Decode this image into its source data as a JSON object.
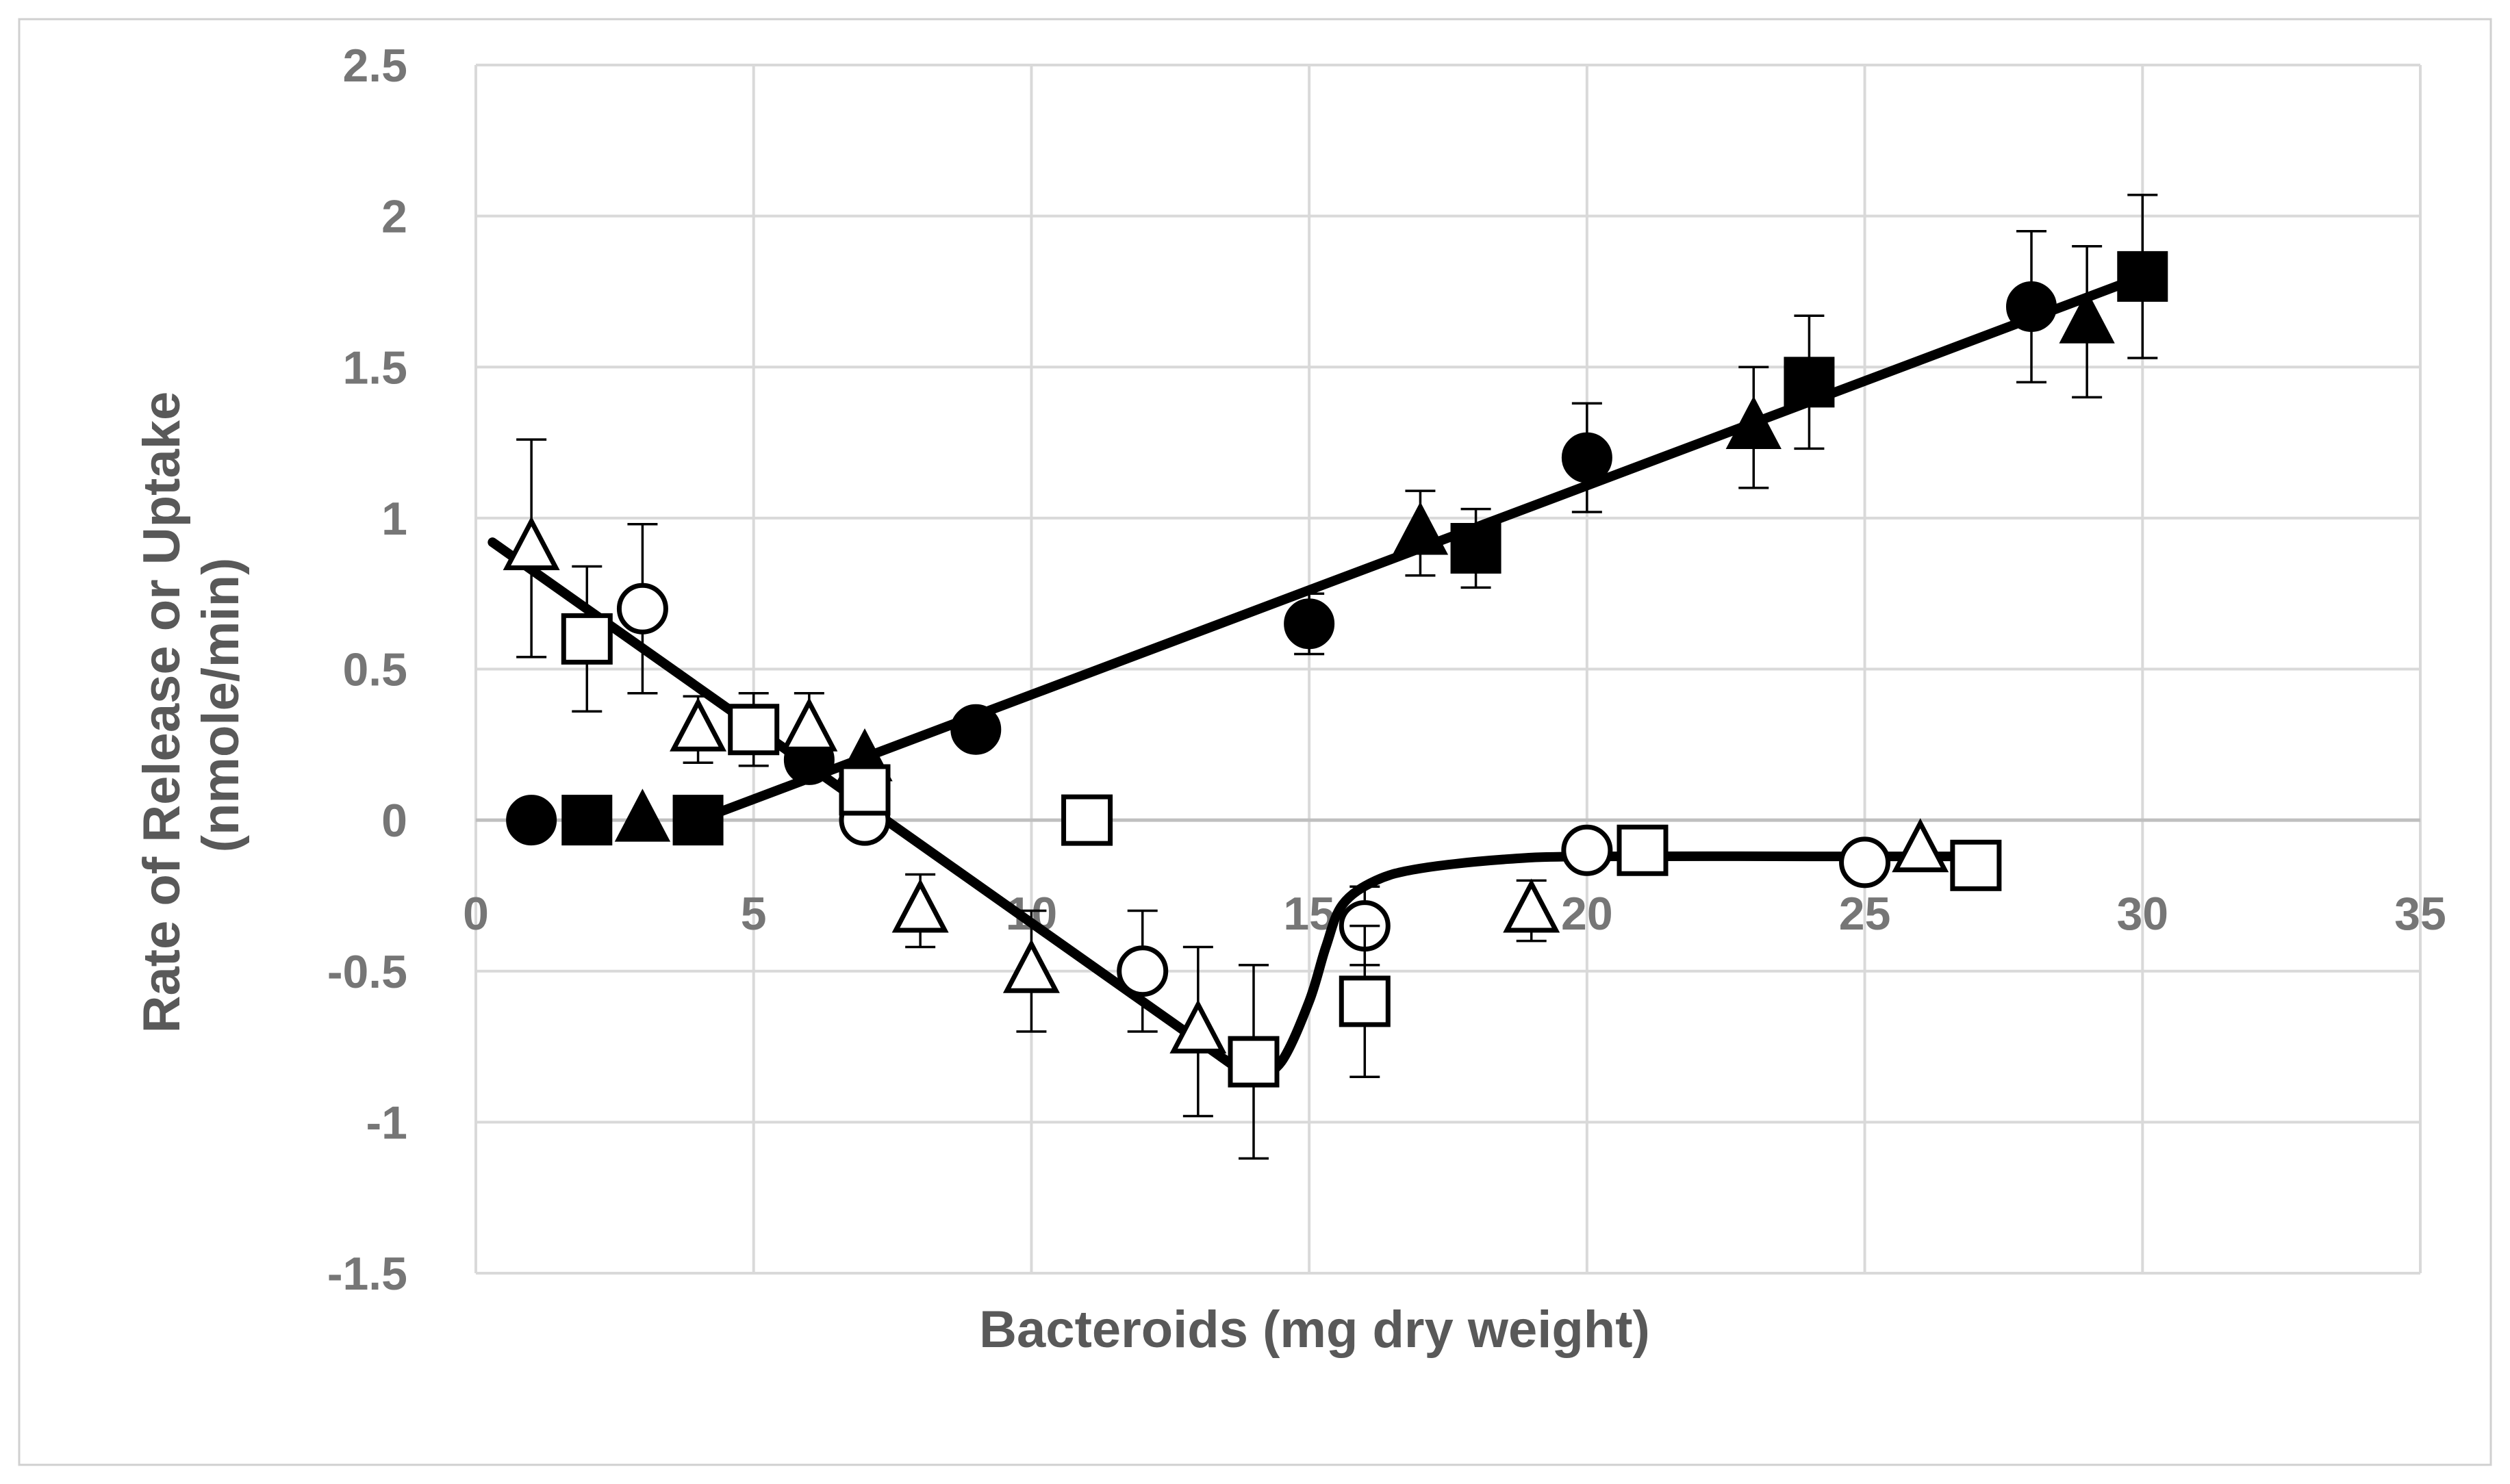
{
  "chart_data": {
    "type": "scatter",
    "title": "",
    "xlabel": "Bacteroids (mg dry weight)",
    "ylabel_lines": [
      "Rate of Release or Uptake",
      "(nmole/min)"
    ],
    "xlim": [
      0,
      35
    ],
    "ylim": [
      -1.5,
      2.5
    ],
    "x_ticks": [
      "0",
      "5",
      "10",
      "15",
      "20",
      "25",
      "30",
      "35"
    ],
    "y_ticks": [
      "2.5",
      "2",
      "1.5",
      "1",
      "0.5",
      "0",
      "-0.5",
      "-1",
      "-1.5"
    ],
    "grid": true,
    "legend": "none",
    "series": [
      {
        "marker": "circle",
        "fill": "filled",
        "points": [
          {
            "x": 1,
            "y": 0
          },
          {
            "x": 6,
            "y": 0.2
          },
          {
            "x": 9,
            "y": 0.3
          },
          {
            "x": 15,
            "y": 0.65,
            "err": 0.1
          },
          {
            "x": 20,
            "y": 1.2,
            "err": 0.18
          },
          {
            "x": 28,
            "y": 1.7,
            "err": 0.25
          }
        ]
      },
      {
        "marker": "square",
        "fill": "filled",
        "points": [
          {
            "x": 2,
            "y": 0
          },
          {
            "x": 4,
            "y": 0
          },
          {
            "x": 18,
            "y": 0.9,
            "err": 0.13
          },
          {
            "x": 24,
            "y": 1.45,
            "err": 0.22
          },
          {
            "x": 30,
            "y": 1.8,
            "err": 0.27
          }
        ]
      },
      {
        "marker": "triangle",
        "fill": "filled",
        "points": [
          {
            "x": 3,
            "y": 0
          },
          {
            "x": 7,
            "y": 0.2
          },
          {
            "x": 17,
            "y": 0.95,
            "err": 0.14
          },
          {
            "x": 23,
            "y": 1.3,
            "err": 0.2
          },
          {
            "x": 29,
            "y": 1.65,
            "err": 0.25
          }
        ]
      },
      {
        "marker": "circle",
        "fill": "open",
        "points": [
          {
            "x": 3,
            "y": 0.7,
            "err": 0.28
          },
          {
            "x": 7,
            "y": 0
          },
          {
            "x": 12,
            "y": -0.5,
            "err": 0.2
          },
          {
            "x": 16,
            "y": -0.35,
            "err": 0.13
          },
          {
            "x": 20,
            "y": -0.1
          },
          {
            "x": 25,
            "y": -0.14
          }
        ]
      },
      {
        "marker": "square",
        "fill": "open",
        "points": [
          {
            "x": 2,
            "y": 0.6,
            "err": 0.24
          },
          {
            "x": 5,
            "y": 0.3,
            "err": 0.12
          },
          {
            "x": 7,
            "y": 0.1
          },
          {
            "x": 11,
            "y": 0,
            "err": 0.02
          },
          {
            "x": 14,
            "y": -0.8,
            "err": 0.32
          },
          {
            "x": 16,
            "y": -0.6,
            "err": 0.25
          },
          {
            "x": 21,
            "y": -0.1,
            "err": 0.02
          },
          {
            "x": 27,
            "y": -0.15
          }
        ]
      },
      {
        "marker": "triangle",
        "fill": "open",
        "points": [
          {
            "x": 1,
            "y": 0.9,
            "err": 0.36
          },
          {
            "x": 4,
            "y": 0.3,
            "err": 0.11
          },
          {
            "x": 6,
            "y": 0.3,
            "err": 0.12
          },
          {
            "x": 8,
            "y": -0.3,
            "err": 0.12
          },
          {
            "x": 10,
            "y": -0.5,
            "err": 0.2
          },
          {
            "x": 13,
            "y": -0.7,
            "err": 0.28
          },
          {
            "x": 19,
            "y": -0.3,
            "err": 0.1
          },
          {
            "x": 26,
            "y": -0.1
          }
        ]
      }
    ],
    "trend_lines": [
      {
        "points": [
          [
            4,
            0
          ],
          [
            30,
            1.8
          ]
        ]
      },
      {
        "points": [
          [
            0.3,
            0.92
          ],
          [
            14,
            -0.86
          ]
        ]
      },
      {
        "points": [
          [
            14,
            -0.86
          ],
          [
            14.5,
            -0.8
          ],
          [
            15,
            -0.6
          ],
          [
            15.3,
            -0.42
          ],
          [
            15.6,
            -0.28
          ],
          [
            16.2,
            -0.2
          ],
          [
            17,
            -0.16
          ],
          [
            18.5,
            -0.13
          ],
          [
            20,
            -0.12
          ],
          [
            24,
            -0.12
          ],
          [
            27,
            -0.12
          ]
        ]
      }
    ]
  }
}
